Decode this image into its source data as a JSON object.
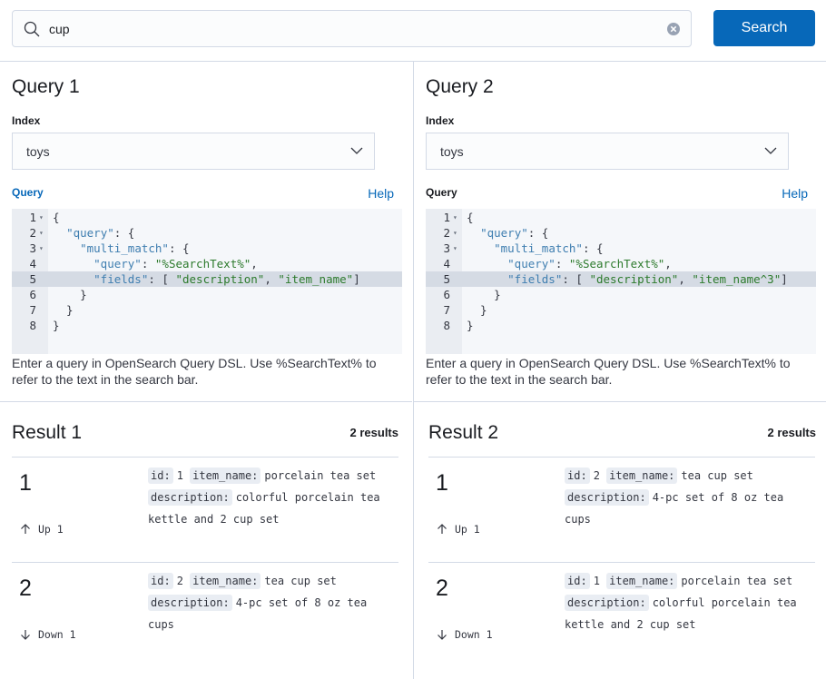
{
  "search": {
    "value": "cup",
    "button": "Search"
  },
  "queries": [
    {
      "title": "Query 1",
      "index_label": "Index",
      "index_value": "toys",
      "query_label": "Query",
      "help": "Help",
      "line_numbers": [
        1,
        2,
        3,
        4,
        5,
        6,
        7,
        8
      ],
      "code_lines": [
        "{",
        "  \"query\": {",
        "    \"multi_match\": {",
        "      \"query\": \"%SearchText%\",",
        "      \"fields\": [ \"description\", \"item_name\"]",
        "    }",
        "  }",
        "}"
      ],
      "hint": "Enter a query in OpenSearch Query DSL. Use %SearchText% to refer to the text in the search bar."
    },
    {
      "title": "Query 2",
      "index_label": "Index",
      "index_value": "toys",
      "query_label": "Query",
      "help": "Help",
      "line_numbers": [
        1,
        2,
        3,
        4,
        5,
        6,
        7,
        8
      ],
      "code_lines": [
        "{",
        "  \"query\": {",
        "    \"multi_match\": {",
        "      \"query\": \"%SearchText%\",",
        "      \"fields\": [ \"description\", \"item_name^3\"]",
        "    }",
        "  }",
        "}"
      ],
      "hint": "Enter a query in OpenSearch Query DSL. Use %SearchText% to refer to the text in the search bar."
    }
  ],
  "results": [
    {
      "title": "Result 1",
      "count": "2 results",
      "items": [
        {
          "rank": "1",
          "fields": [
            {
              "key": "id:",
              "value": "1"
            },
            {
              "key": "item_name:",
              "value": "porcelain tea set"
            },
            {
              "key": "description:",
              "value": "colorful porcelain tea kettle and 2 cup set"
            }
          ],
          "change": "Up 1"
        },
        {
          "rank": "2",
          "fields": [
            {
              "key": "id:",
              "value": "2"
            },
            {
              "key": "item_name:",
              "value": "tea cup set"
            },
            {
              "key": "description:",
              "value": "4-pc set of 8 oz tea cups"
            }
          ],
          "change": "Down 1"
        }
      ]
    },
    {
      "title": "Result 2",
      "count": "2 results",
      "items": [
        {
          "rank": "1",
          "fields": [
            {
              "key": "id:",
              "value": "2"
            },
            {
              "key": "item_name:",
              "value": "tea cup set"
            },
            {
              "key": "description:",
              "value": "4-pc set of 8 oz tea cups"
            }
          ],
          "change": "Up 1"
        },
        {
          "rank": "2",
          "fields": [
            {
              "key": "id:",
              "value": "1"
            },
            {
              "key": "item_name:",
              "value": "porcelain tea set"
            },
            {
              "key": "description:",
              "value": "colorful porcelain tea kettle and 2 cup set"
            }
          ],
          "change": "Down 1"
        }
      ]
    }
  ]
}
